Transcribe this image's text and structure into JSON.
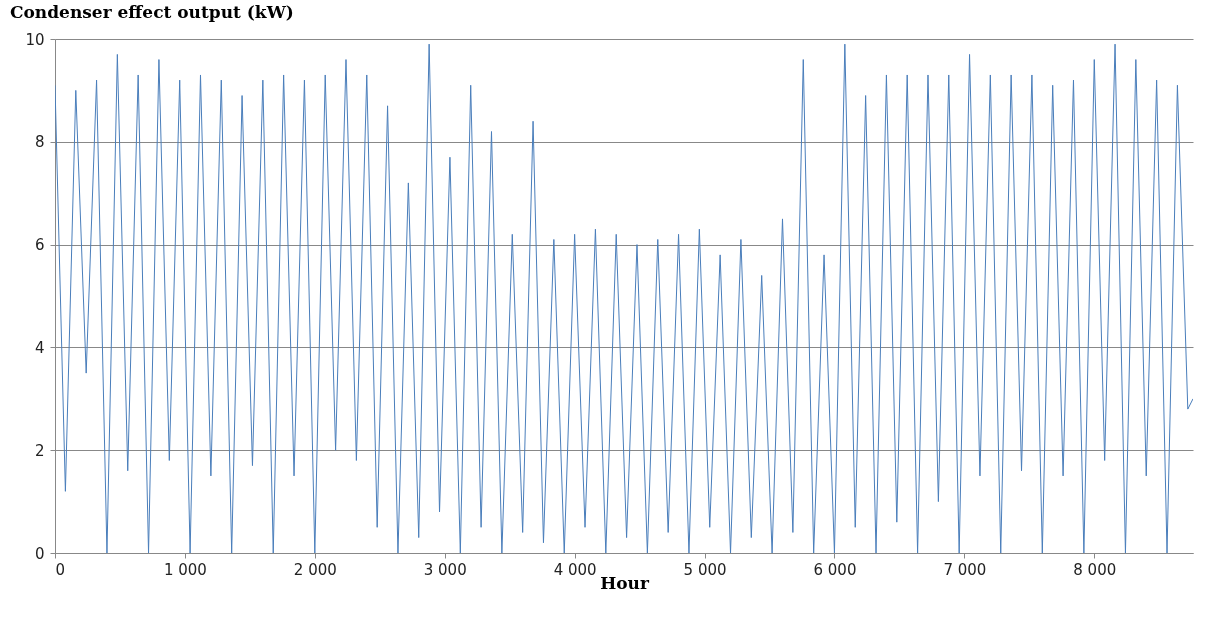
{
  "chart_data": {
    "type": "line",
    "title": "Condenser effect output (kW)",
    "xlabel": "Hour",
    "x": [
      0,
      80,
      160,
      240,
      320,
      400,
      480,
      560,
      640,
      720,
      800,
      880,
      960,
      1040,
      1120,
      1200,
      1280,
      1360,
      1440,
      1520,
      1600,
      1680,
      1760,
      1840,
      1920,
      2000,
      2080,
      2160,
      2240,
      2320,
      2400,
      2480,
      2560,
      2640,
      2720,
      2800,
      2880,
      2960,
      3040,
      3120,
      3200,
      3280,
      3360,
      3440,
      3520,
      3600,
      3680,
      3760,
      3840,
      3920,
      4000,
      4080,
      4160,
      4240,
      4320,
      4400,
      4480,
      4560,
      4640,
      4720,
      4800,
      4880,
      4960,
      5040,
      5120,
      5200,
      5280,
      5360,
      5440,
      5520,
      5600,
      5680,
      5760,
      5840,
      5920,
      6000,
      6080,
      6160,
      6240,
      6320,
      6400,
      6480,
      6560,
      6640,
      6720,
      6800,
      6880,
      6960,
      7040,
      7120,
      7200,
      7280,
      7360,
      7440,
      7520,
      7600,
      7680,
      7760,
      7840,
      7920,
      8000,
      8080,
      8160,
      8240,
      8320,
      8400,
      8480,
      8560,
      8640,
      8720,
      8760
    ],
    "values": [
      9.1,
      1.2,
      9.0,
      3.5,
      9.2,
      0,
      9.7,
      1.6,
      9.3,
      0,
      9.6,
      1.8,
      9.2,
      0,
      9.3,
      1.5,
      9.2,
      0,
      8.9,
      1.7,
      9.2,
      0,
      9.3,
      1.5,
      9.2,
      0,
      9.3,
      2.0,
      9.6,
      1.8,
      9.3,
      0.5,
      8.7,
      0,
      7.2,
      0.3,
      9.9,
      0.8,
      7.7,
      0,
      9.1,
      0.5,
      8.2,
      0,
      6.2,
      0.4,
      8.4,
      0.2,
      6.1,
      0,
      6.2,
      0.5,
      6.3,
      0,
      6.2,
      0.3,
      6.0,
      0,
      6.1,
      0.4,
      6.2,
      0,
      6.3,
      0.5,
      5.8,
      0,
      6.1,
      0.3,
      5.4,
      0,
      6.5,
      0.4,
      9.6,
      0,
      5.8,
      0,
      9.9,
      0.5,
      8.9,
      0,
      9.3,
      0.6,
      9.3,
      0,
      9.3,
      1.0,
      9.3,
      0,
      9.7,
      1.5,
      9.3,
      0,
      9.3,
      1.6,
      9.3,
      0,
      9.1,
      1.5,
      9.2,
      0,
      9.6,
      1.8,
      9.9,
      0,
      9.6,
      1.5,
      9.2,
      0,
      9.1,
      2.8,
      3.0
    ],
    "color": "#4a7ebb",
    "xlim": [
      0,
      8760
    ],
    "xticks": [
      0,
      {
        "value": 1000,
        "label": "1 000"
      },
      {
        "value": 2000,
        "label": "2 000"
      },
      {
        "value": 3000,
        "label": "3 000"
      },
      {
        "value": 4000,
        "label": "4 000"
      },
      {
        "value": 5000,
        "label": "5 000"
      },
      {
        "value": 6000,
        "label": "6 000"
      },
      {
        "value": 7000,
        "label": "7 000"
      },
      {
        "value": 8000,
        "label": "8 000"
      }
    ],
    "ylim": [
      0,
      10
    ],
    "yticks": [
      0,
      2,
      4,
      6,
      8,
      10
    ],
    "grid": "y"
  }
}
